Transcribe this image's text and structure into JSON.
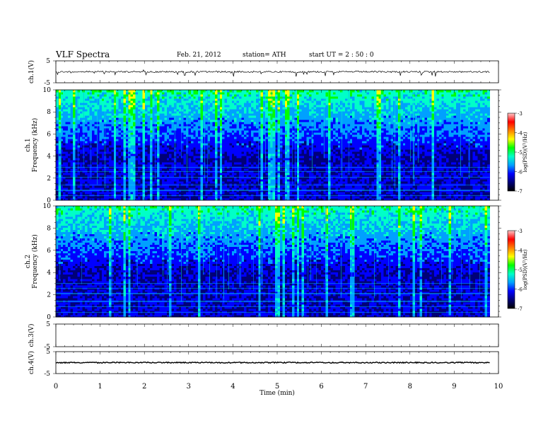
{
  "header": {
    "title": "VLF  Spectra",
    "date": "Feb. 21, 2012",
    "station": "station= ATH",
    "start": "start  UT  =   2  : 50 : 0"
  },
  "chart_data": {
    "type": "heatmap",
    "xlabel": "Time  (min)",
    "xlim": [
      0,
      10
    ],
    "xticks": [
      "0",
      "1",
      "2",
      "3",
      "4",
      "5",
      "6",
      "7",
      "8",
      "9",
      "10"
    ],
    "panels": [
      {
        "kind": "waveform",
        "ylabel": "ch.1(V)",
        "ylim": [
          -5,
          5
        ],
        "yticks": [
          "5",
          "-5"
        ],
        "baseline": 0,
        "data_end_min": 9.8
      },
      {
        "kind": "spectrogram",
        "ylabel": "ch.1\nFrequency  (kHz)",
        "ylim": [
          0,
          10
        ],
        "yticks": [
          "0",
          "2",
          "4",
          "6",
          "8",
          "10"
        ],
        "data_end_min": 9.8,
        "colorbar": {
          "label": "log(PSD)(V²/Hz)",
          "range": [
            -7,
            -3
          ],
          "ticks": [
            "-3",
            "-4",
            "-5",
            "-6",
            "-7"
          ]
        }
      },
      {
        "kind": "spectrogram",
        "ylabel": "ch.2\nFrequency  (kHz)",
        "ylim": [
          0,
          10
        ],
        "yticks": [
          "0",
          "2",
          "4",
          "6",
          "8",
          "10"
        ],
        "data_end_min": 9.8,
        "colorbar": {
          "label": "log(PSD)(V²/Hz)",
          "range": [
            -7,
            -3
          ],
          "ticks": [
            "-3",
            "-4",
            "-5",
            "-6",
            "-7"
          ]
        }
      },
      {
        "kind": "waveform",
        "ylabel": "ch.3(V)",
        "ylim": [
          -5,
          5
        ],
        "yticks": [
          "5",
          "-5"
        ],
        "empty": true
      },
      {
        "kind": "waveform",
        "ylabel": "ch.4(V)",
        "ylim": [
          -5,
          5
        ],
        "yticks": [
          "5",
          "-5"
        ],
        "baseline": 0,
        "data_end_min": 9.8
      }
    ]
  },
  "colors": {
    "colormap": [
      "#000000",
      "#000078",
      "#0000ff",
      "#00a0ff",
      "#00ffc8",
      "#00ff00",
      "#ffff00",
      "#ff8000",
      "#ff0000",
      "#ffc8c8"
    ]
  }
}
